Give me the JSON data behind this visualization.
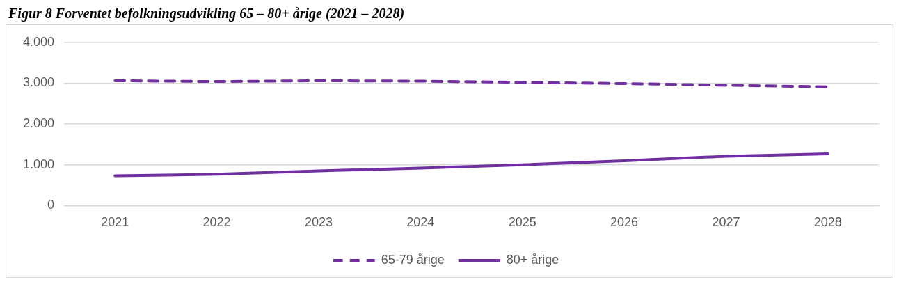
{
  "chart_data": {
    "type": "line",
    "title": "Figur 8 Forventet befolkningsudvikling 65 – 80+ årige (2021 – 2028)",
    "categories": [
      "2021",
      "2022",
      "2023",
      "2024",
      "2025",
      "2026",
      "2027",
      "2028"
    ],
    "series": [
      {
        "name": "65-79 årige",
        "color": "#7030a0",
        "line_style": "dashed",
        "values": [
          3060,
          3040,
          3060,
          3050,
          3020,
          2990,
          2950,
          2910
        ]
      },
      {
        "name": "80+ årige",
        "color": "#7030a0",
        "line_style": "solid",
        "values": [
          730,
          770,
          850,
          920,
          1000,
          1100,
          1210,
          1270
        ]
      }
    ],
    "ylim": [
      0,
      4000
    ],
    "yticks": [
      0,
      {
        "value": 1000,
        "label": "1.000"
      },
      {
        "value": 2000,
        "label": "2.000"
      },
      {
        "value": 3000,
        "label": "3.000"
      },
      {
        "value": 4000,
        "label": "4.000"
      }
    ],
    "grid": "y",
    "legend": "bottom",
    "marker": "none"
  }
}
